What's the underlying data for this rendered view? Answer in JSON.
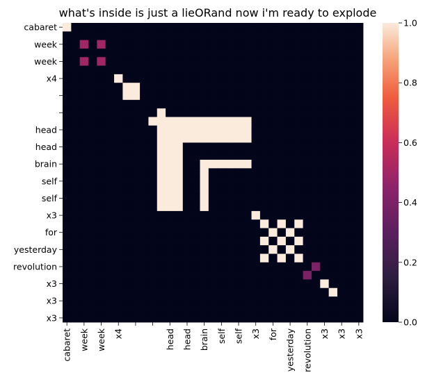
{
  "chart_data": {
    "type": "heatmap",
    "title": "what's inside is just a lieORand now i'm ready to explode",
    "xlabel": "",
    "ylabel": "",
    "labels": [
      "cabaret",
      "",
      "week",
      "",
      "week",
      "",
      "x4",
      "",
      "",
      "",
      "",
      "",
      "head",
      "",
      "head",
      "",
      "brain",
      "",
      "self",
      "",
      "self",
      "",
      "x3",
      "",
      "for",
      "",
      "yesterday",
      "",
      "revolution",
      "",
      "x3",
      "",
      "x3",
      "",
      "x3",
      ""
    ],
    "colorbar": {
      "ticks": [
        "0.0",
        "0.2",
        "0.4",
        "0.6",
        "0.8",
        "1.0"
      ],
      "range": [
        0,
        1
      ]
    },
    "grid": false,
    "size": 35,
    "groups": [
      {
        "cells": [
          0,
          2,
          4,
          6
        ],
        "values": [
          [
            1,
            0,
            0,
            0
          ],
          [
            0,
            0.5,
            0.5,
            0
          ],
          [
            0,
            0.5,
            0.5,
            0
          ],
          [
            0,
            0,
            0,
            1
          ]
        ]
      },
      {
        "cells": [
          7,
          8
        ],
        "values": [
          [
            1,
            1
          ],
          [
            1,
            1
          ]
        ]
      },
      {
        "cells": [
          10,
          11
        ],
        "values": [
          [
            0,
            1
          ],
          [
            1,
            0
          ]
        ]
      },
      {
        "cells": [
          11,
          12,
          13,
          14,
          15,
          16,
          17,
          18,
          19,
          20,
          21
        ],
        "values": [
          [
            1,
            1,
            1,
            0,
            0,
            1,
            0,
            0,
            0,
            0,
            0
          ]
        ]
      },
      {
        "cells": [
          22
        ],
        "values": [
          [
            1
          ]
        ]
      },
      {
        "cells": [
          23,
          24,
          25,
          26,
          27
        ],
        "values": [
          [
            1,
            0,
            1,
            0,
            1
          ],
          [
            0,
            1,
            0,
            1,
            0
          ],
          [
            1,
            0,
            1,
            0,
            1
          ],
          [
            0,
            1,
            0,
            1,
            0
          ],
          [
            1,
            0,
            1,
            0,
            1
          ]
        ]
      },
      {
        "cells": [
          28,
          29
        ],
        "values": [
          [
            0,
            0.4
          ],
          [
            0.4,
            0
          ]
        ]
      },
      {
        "cells": [
          30,
          31
        ],
        "values": [
          [
            1,
            0
          ],
          [
            0,
            1
          ]
        ]
      }
    ]
  }
}
